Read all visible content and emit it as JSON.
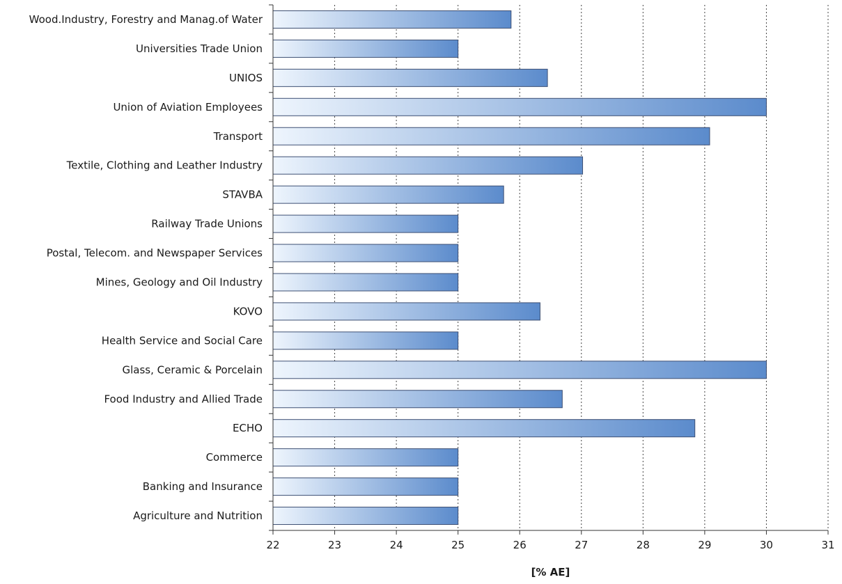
{
  "chart_data": {
    "type": "bar",
    "orientation": "horizontal",
    "categories": [
      "Wood.Industry, Forestry and Manag.of Water",
      "Universities Trade Union",
      "UNIOS",
      "Union of Aviation Employees",
      "Transport",
      "Textile, Clothing and Leather Industry",
      "STAVBA",
      "Railway Trade Unions",
      "Postal, Telecom. and Newspaper Services",
      "Mines, Geology and Oil Industry",
      "KOVO",
      "Health Service and Social Care",
      "Glass, Ceramic & Porcelain",
      "Food Industry and Allied Trade",
      "ECHO",
      "Commerce",
      "Banking and Insurance",
      "Agriculture and Nutrition"
    ],
    "values": [
      25.86,
      25.0,
      26.45,
      30.0,
      29.08,
      27.02,
      25.74,
      25.0,
      25.0,
      25.0,
      26.33,
      25.0,
      30.0,
      26.69,
      28.84,
      25.0,
      25.0,
      25.0
    ],
    "xlabel": "[% AE]",
    "ylabel": "",
    "title": "",
    "xlim": [
      22,
      31
    ],
    "xticks": [
      22,
      23,
      24,
      25,
      26,
      27,
      28,
      29,
      30,
      31
    ],
    "grid": "vertical dotted",
    "legend": "none",
    "colors": {
      "bar_start": "#eef5fd",
      "bar_end": "#5b8bcc",
      "bar_stroke": "#3d4f73",
      "axis": "#333333",
      "grid": "#444444"
    }
  }
}
